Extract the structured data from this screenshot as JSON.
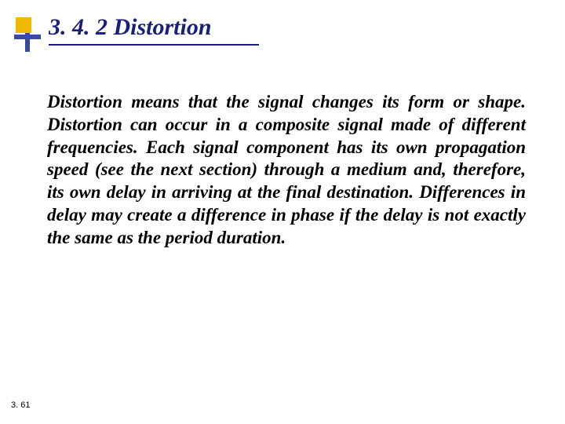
{
  "heading": {
    "text": "3. 4. 2  Distortion",
    "color": "#1a1f7a",
    "fontsize": 30
  },
  "bullet": {
    "yellow_color": "#f0b800",
    "blue_color": "#3a4b9c"
  },
  "body": {
    "text": "Distortion means that the signal changes its form or shape. Distortion can occur in a composite signal made of different frequencies. Each signal component has its own propagation speed (see the next section) through a medium and, therefore, its own delay in arriving at the final destination. Differences in delay may create a difference in phase if the delay is not exactly the same as the period duration.",
    "color": "#000000",
    "fontsize": 23
  },
  "page_number": {
    "text": "3. 61",
    "fontsize": 11
  },
  "background_color": "#ffffff"
}
